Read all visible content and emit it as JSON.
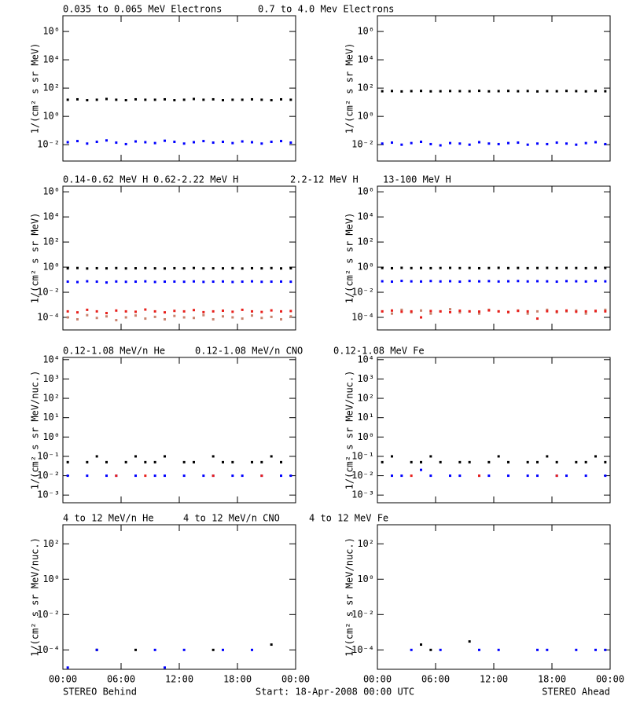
{
  "chart_data": {
    "type": "scatter",
    "log_y": true,
    "x": [
      0.5,
      1.5,
      2.5,
      3.5,
      4.5,
      5.5,
      6.5,
      7.5,
      8.5,
      9.5,
      10.5,
      11.5,
      12.5,
      13.5,
      14.5,
      15.5,
      16.5,
      17.5,
      18.5,
      19.5,
      20.5,
      21.5,
      22.5,
      23.5
    ],
    "xlim": [
      0,
      24
    ],
    "xticks": [
      {
        "value": 0,
        "label": "00:00"
      },
      {
        "value": 6,
        "label": "06:00"
      },
      {
        "value": 12,
        "label": "12:00"
      },
      {
        "value": 18,
        "label": "18:00"
      },
      {
        "value": 24,
        "label": "00:00"
      }
    ],
    "footer": {
      "left": "STEREO Behind",
      "center": "Start: 18-Apr-2008 00:00 UTC",
      "right": "STEREO Ahead"
    },
    "rows": [
      {
        "ylabel": "1/(cm² s sr MeV)",
        "ylim": [
          0.0007,
          13000000
        ],
        "yticks": [
          {
            "value": 0.01,
            "label": "10⁻²"
          },
          {
            "value": 1,
            "label": "10⁰"
          },
          {
            "value": 100,
            "label": "10²"
          },
          {
            "value": 10000,
            "label": "10⁴"
          },
          {
            "value": 1000000,
            "label": "10⁶"
          }
        ],
        "series": [
          {
            "name": "0.035 to 0.065 MeV Electrons",
            "color": "#000000",
            "behind": [
              15,
              16,
              14,
              15,
              17,
              15,
              14,
              16,
              15,
              15,
              16,
              14,
              15,
              17,
              15,
              16,
              14,
              15,
              15,
              16,
              15,
              14,
              16,
              15
            ],
            "ahead": [
              60,
              62,
              58,
              61,
              63,
              59,
              60,
              62,
              61,
              60,
              64,
              59,
              61,
              63,
              60,
              62,
              58,
              61,
              60,
              63,
              61,
              59,
              62,
              60
            ]
          },
          {
            "name": "0.7 to 4.0 Mev Electrons",
            "color": "#0000ff",
            "behind": [
              0.015,
              0.018,
              0.012,
              0.016,
              0.02,
              0.014,
              0.011,
              0.017,
              0.015,
              0.013,
              0.019,
              0.016,
              0.012,
              0.015,
              0.018,
              0.014,
              0.016,
              0.013,
              0.017,
              0.015,
              0.012,
              0.016,
              0.018,
              0.014
            ],
            "ahead": [
              0.012,
              0.014,
              0.01,
              0.013,
              0.016,
              0.011,
              0.009,
              0.013,
              0.012,
              0.01,
              0.015,
              0.012,
              0.011,
              0.013,
              0.014,
              0.01,
              0.012,
              0.011,
              0.014,
              0.012,
              0.01,
              0.013,
              0.015,
              0.011
            ]
          }
        ]
      },
      {
        "ylabel": "1/(cm² s sr MeV)",
        "ylim": [
          1e-05,
          2800000
        ],
        "yticks": [
          {
            "value": 0.0001,
            "label": "10⁻⁴"
          },
          {
            "value": 0.01,
            "label": "10⁻²"
          },
          {
            "value": 1,
            "label": "10⁰"
          },
          {
            "value": 100,
            "label": "10²"
          },
          {
            "value": 10000,
            "label": "10⁴"
          },
          {
            "value": 1000000,
            "label": "10⁶"
          }
        ],
        "series": [
          {
            "name": "0.14-0.62 MeV H",
            "color": "#000000",
            "behind": [
              0.8,
              0.85,
              0.78,
              0.82,
              0.8,
              0.84,
              0.79,
              0.81,
              0.83,
              0.8,
              0.78,
              0.82,
              0.8,
              0.85,
              0.79,
              0.81,
              0.8,
              0.83,
              0.78,
              0.82,
              0.8,
              0.84,
              0.79,
              0.81
            ],
            "ahead": [
              0.85,
              0.82,
              0.88,
              0.84,
              0.86,
              0.83,
              0.85,
              0.87,
              0.84,
              0.86,
              0.82,
              0.85,
              0.88,
              0.84,
              0.86,
              0.83,
              0.85,
              0.87,
              0.84,
              0.86,
              0.85,
              0.83,
              0.87,
              0.85
            ]
          },
          {
            "name": "0.62-2.22 MeV H",
            "color": "#0000ff",
            "behind": [
              0.07,
              0.065,
              0.075,
              0.07,
              0.06,
              0.072,
              0.068,
              0.07,
              0.074,
              0.066,
              0.07,
              0.071,
              0.069,
              0.073,
              0.067,
              0.07,
              0.072,
              0.066,
              0.07,
              0.074,
              0.068,
              0.07,
              0.071,
              0.069
            ],
            "ahead": [
              0.075,
              0.07,
              0.08,
              0.074,
              0.072,
              0.078,
              0.073,
              0.076,
              0.07,
              0.079,
              0.074,
              0.077,
              0.072,
              0.075,
              0.078,
              0.073,
              0.076,
              0.074,
              0.07,
              0.077,
              0.075,
              0.072,
              0.078,
              0.074
            ]
          },
          {
            "name": "2.2-12 MeV H",
            "color": "#c8826e",
            "behind": [
              0.0001,
              7e-05,
              0.00015,
              9e-05,
              0.00012,
              6e-05,
              0.0001,
              0.00014,
              8e-05,
              0.00011,
              7e-05,
              0.00013,
              0.0001,
              9e-05,
              0.00015,
              7e-05,
              0.00012,
              0.0001,
              8e-05,
              0.00014,
              9e-05,
              0.00011,
              7e-05,
              0.00012
            ],
            "ahead": [
              0.0003,
              0.0002,
              0.0004,
              0.00025,
              0.00035,
              0.0002,
              0.0003,
              0.00045,
              0.00025,
              0.0003,
              0.0002,
              0.0004,
              0.0003,
              0.00025,
              0.00035,
              0.0002,
              0.0003,
              0.0004,
              0.00025,
              0.0003,
              0.00035,
              0.0002,
              0.0003,
              0.0004
            ]
          },
          {
            "name": "13-100 MeV H",
            "color": "#e8201c",
            "behind": [
              0.0003,
              0.00025,
              0.0004,
              0.0003,
              0.00022,
              0.00035,
              0.0003,
              0.00028,
              0.00042,
              0.0003,
              0.00025,
              0.00033,
              0.0003,
              0.00038,
              0.00026,
              0.0003,
              0.00034,
              0.00028,
              0.0004,
              0.0003,
              0.00027,
              0.00036,
              0.0003,
              0.00032
            ],
            "ahead": [
              0.0003,
              0.00035,
              0.00028,
              0.0003,
              0.0001,
              0.00032,
              0.0003,
              0.00026,
              0.00034,
              0.0003,
              0.00029,
              0.00036,
              0.0003,
              0.00027,
              0.00033,
              0.0003,
              8e-05,
              0.00031,
              0.0003,
              0.00035,
              0.00028,
              0.0003,
              0.00033,
              0.0003
            ]
          }
        ]
      },
      {
        "ylabel": "1/(cm² s sr MeV/nuc.)",
        "ylim": [
          0.0004,
          13000
        ],
        "yticks": [
          {
            "value": 0.001,
            "label": "10⁻³"
          },
          {
            "value": 0.01,
            "label": "10⁻²"
          },
          {
            "value": 0.1,
            "label": "10⁻¹"
          },
          {
            "value": 1,
            "label": "10⁰"
          },
          {
            "value": 10,
            "label": "10¹"
          },
          {
            "value": 100,
            "label": "10²"
          },
          {
            "value": 1000,
            "label": "10³"
          },
          {
            "value": 10000,
            "label": "10⁴"
          }
        ],
        "series": [
          {
            "name": "0.12-1.08 MeV/n He",
            "color": "#000000",
            "behind": [
              0.05,
              null,
              0.05,
              0.1,
              0.05,
              null,
              0.05,
              0.1,
              0.05,
              0.05,
              0.1,
              null,
              0.05,
              0.05,
              null,
              0.1,
              0.05,
              0.05,
              null,
              0.05,
              0.05,
              0.1,
              0.05,
              null
            ],
            "ahead": [
              0.05,
              0.1,
              null,
              0.05,
              0.05,
              0.1,
              0.05,
              null,
              0.05,
              0.05,
              null,
              0.05,
              0.1,
              0.05,
              null,
              0.05,
              0.05,
              0.1,
              0.05,
              null,
              0.05,
              0.05,
              0.1,
              0.05
            ]
          },
          {
            "name": "0.12-1.08 MeV/n CNO",
            "color": "#0000ff",
            "behind": [
              0.01,
              null,
              0.01,
              null,
              0.01,
              0.01,
              null,
              0.01,
              null,
              0.01,
              0.01,
              null,
              0.01,
              null,
              0.01,
              0.01,
              null,
              0.01,
              0.01,
              null,
              0.01,
              null,
              0.01,
              0.01
            ],
            "ahead": [
              null,
              0.01,
              0.01,
              null,
              0.02,
              0.01,
              null,
              0.01,
              0.01,
              null,
              0.01,
              0.01,
              null,
              0.01,
              null,
              0.01,
              0.01,
              null,
              0.01,
              0.01,
              null,
              0.01,
              null,
              0.01
            ]
          },
          {
            "name": "0.12-1.08 MeV Fe",
            "color": "#e8201c",
            "behind": [
              null,
              null,
              null,
              null,
              null,
              0.01,
              null,
              null,
              0.01,
              null,
              null,
              null,
              null,
              null,
              null,
              0.01,
              null,
              null,
              null,
              null,
              0.01,
              null,
              null,
              null
            ],
            "ahead": [
              null,
              null,
              null,
              0.01,
              null,
              null,
              null,
              null,
              null,
              null,
              0.01,
              null,
              null,
              null,
              null,
              null,
              null,
              null,
              0.01,
              null,
              null,
              null,
              null,
              null
            ]
          }
        ]
      },
      {
        "ylabel": "1/(cm² s sr MeV/nuc.)",
        "ylim": [
          8e-06,
          1200
        ],
        "yticks": [
          {
            "value": 0.0001,
            "label": "10⁻⁴"
          },
          {
            "value": 0.01,
            "label": "10⁻²"
          },
          {
            "value": 1,
            "label": "10⁰"
          },
          {
            "value": 100,
            "label": "10²"
          }
        ],
        "series": [
          {
            "name": "4 to 12 MeV/n He",
            "color": "#000000",
            "behind": [
              null,
              null,
              null,
              0.0001,
              null,
              null,
              null,
              0.0001,
              null,
              null,
              null,
              null,
              null,
              null,
              null,
              0.0001,
              null,
              null,
              null,
              null,
              null,
              0.0002,
              null,
              null
            ],
            "ahead": [
              null,
              null,
              null,
              null,
              0.0002,
              0.0001,
              null,
              null,
              null,
              0.0003,
              null,
              null,
              null,
              null,
              null,
              null,
              null,
              null,
              null,
              null,
              null,
              null,
              null,
              null
            ]
          },
          {
            "name": "4 to 12 MeV/n CNO",
            "color": "#0000ff",
            "behind": [
              1e-05,
              null,
              null,
              0.0001,
              null,
              null,
              null,
              null,
              null,
              0.0001,
              1e-05,
              null,
              0.0001,
              null,
              null,
              null,
              0.0001,
              null,
              null,
              0.0001,
              null,
              null,
              null,
              null
            ],
            "ahead": [
              null,
              null,
              null,
              0.0001,
              null,
              null,
              0.0001,
              null,
              null,
              null,
              0.0001,
              null,
              0.0001,
              null,
              null,
              null,
              0.0001,
              0.0001,
              null,
              null,
              0.0001,
              null,
              0.0001,
              0.0001
            ]
          },
          {
            "name": "4 to 12 MeV Fe",
            "color": "#e8201c",
            "behind": [
              null,
              null,
              null,
              null,
              null,
              null,
              null,
              null,
              null,
              null,
              null,
              null,
              null,
              null,
              null,
              null,
              null,
              null,
              null,
              null,
              null,
              null,
              null,
              null
            ],
            "ahead": [
              null,
              null,
              null,
              null,
              null,
              null,
              null,
              null,
              null,
              null,
              null,
              null,
              null,
              null,
              null,
              null,
              null,
              null,
              null,
              null,
              null,
              null,
              null,
              null
            ]
          }
        ]
      }
    ]
  }
}
